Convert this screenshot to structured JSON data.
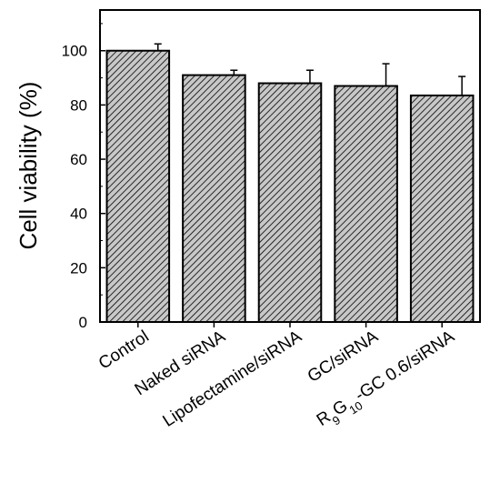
{
  "chart_data": {
    "type": "bar",
    "title": "",
    "xlabel": "",
    "ylabel": "Cell viability (%)",
    "ylim": [
      0,
      115
    ],
    "yticks": [
      0,
      20,
      40,
      60,
      80,
      100
    ],
    "grid": false,
    "bar_fill": "hatched",
    "bar_fill_color": "#c8c8c8",
    "bar_stroke_color": "#000000",
    "categories": [
      "Control",
      "Naked siRNA",
      "Lipofectamine/siRNA",
      "GC/siRNA",
      "R9G10-GC 0.6/siRNA"
    ],
    "values": [
      100,
      91,
      88,
      87,
      83.5
    ],
    "error_bars": [
      2.5,
      1.8,
      4.8,
      8.2,
      7.0
    ]
  }
}
